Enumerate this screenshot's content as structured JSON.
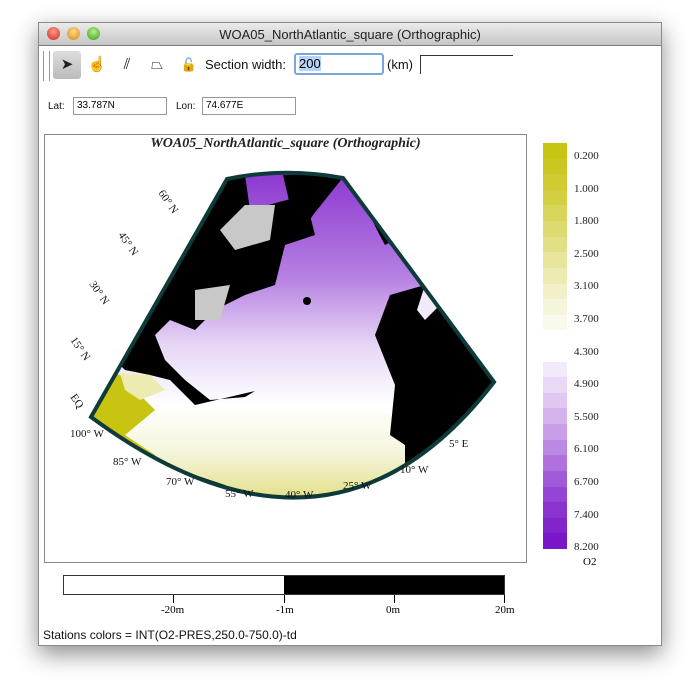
{
  "window": {
    "title": "WOA05_NorthAtlantic_square (Orthographic)"
  },
  "toolbar": {
    "tools": [
      {
        "name": "select-arrow-icon",
        "glyph": "➤"
      },
      {
        "name": "hand-pan-icon",
        "glyph": "☝"
      },
      {
        "name": "ruler-icon",
        "glyph": "⫽"
      },
      {
        "name": "polygon-icon",
        "glyph": "⏢"
      },
      {
        "name": "lock-icon",
        "glyph": "🔓"
      }
    ],
    "section_width_label": "Section width:",
    "section_width_value": "200",
    "unit_label": "(km)",
    "extra_value": ""
  },
  "coords": {
    "lat_label": "Lat:",
    "lat_value": "33.787N",
    "lon_label": "Lon:",
    "lon_value": "74.677E"
  },
  "map": {
    "title": "WOA05_NorthAtlantic_square (Orthographic)",
    "lat_labels": [
      "60° N",
      "45° N",
      "30° N",
      "15° N",
      "EQ"
    ],
    "lon_labels": [
      "100° W",
      "85° W",
      "70° W",
      "55° W",
      "40° W",
      "25° W",
      "10° W",
      "5° E"
    ],
    "colors": {
      "land": "#000000",
      "coast": "#c8c8c8",
      "high_o2": "#8a1fd0",
      "low_o2": "#c8c215",
      "frame": "#0e3a3a"
    }
  },
  "colorbar": {
    "labels": [
      "0.200",
      "1.000",
      "1.800",
      "2.500",
      "3.100",
      "3.700",
      "4.300",
      "4.900",
      "5.500",
      "6.100",
      "6.700",
      "7.400",
      "8.200"
    ],
    "variable": "O2",
    "colors": [
      "#c8c412",
      "#cbc720",
      "#cfcb30",
      "#d3cf42",
      "#d8d55a",
      "#dddb70",
      "#e2e086",
      "#e7e69c",
      "#ecebb2",
      "#f1f0c8",
      "#f5f5dc",
      "#f9f9ec",
      "#ffffff",
      "#ffffff",
      "#f2e9fa",
      "#e9d9f6",
      "#dfc7f2",
      "#d4b3ed",
      "#c89ee8",
      "#bb88e2",
      "#ae71dd",
      "#a15ad7",
      "#9545d3",
      "#8a33cf",
      "#8224cc",
      "#7a16c9"
    ]
  },
  "scale": {
    "ticks": [
      "-20m",
      "-1m",
      "0m",
      "20m"
    ]
  },
  "status": "Stations colors = INT(O2-PRES,250.0-750.0)-td"
}
